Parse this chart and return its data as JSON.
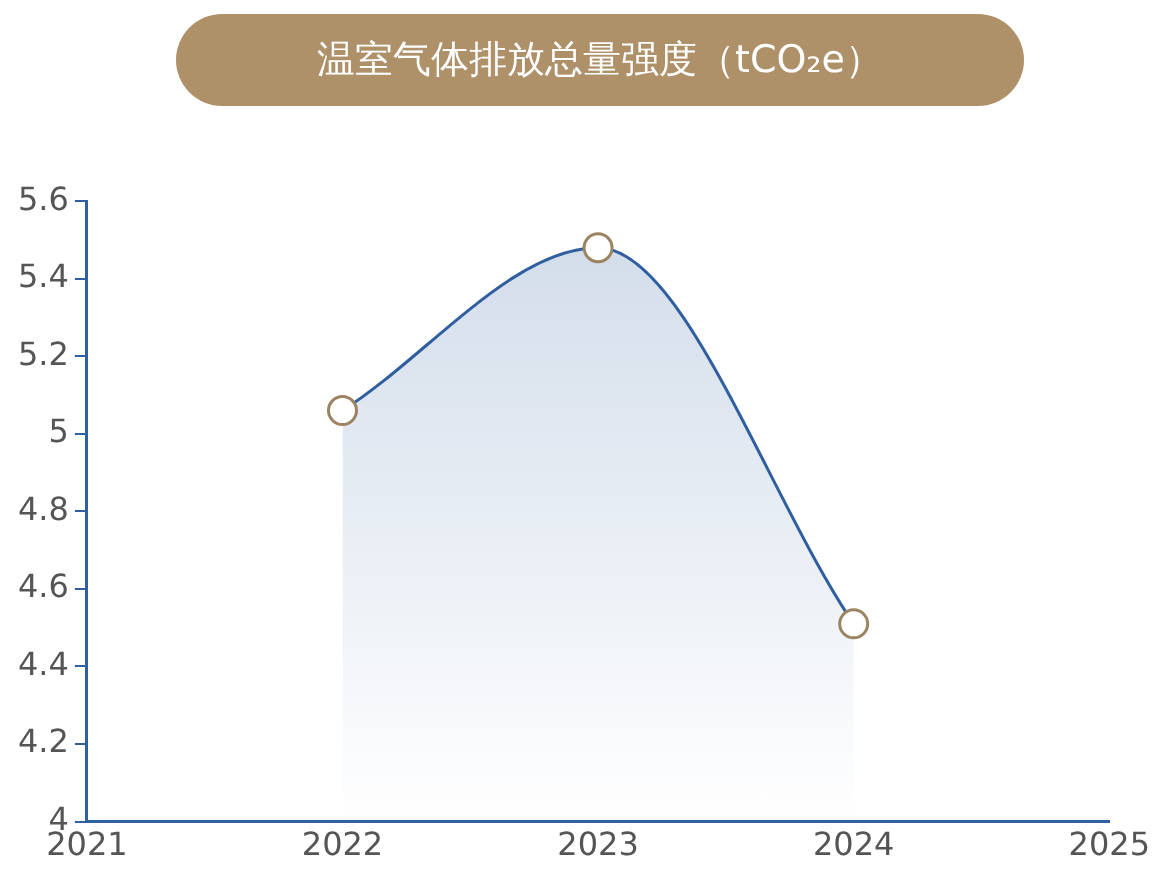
{
  "chart_data": {
    "type": "area",
    "title": "温室气体排放总量强度（tCO₂e）",
    "x": [
      2022,
      2023,
      2024
    ],
    "series": [
      {
        "color": "#2f5f9e",
        "values": [
          5.06,
          5.48,
          4.51
        ]
      }
    ],
    "xlim": [
      2021,
      2025
    ],
    "xticks": [
      2021,
      2022,
      2023,
      2024,
      2025
    ],
    "ylim": [
      4,
      5.6
    ],
    "yticks": [
      4,
      4.2,
      4.4,
      4.6,
      4.8,
      5,
      5.2,
      5.4,
      5.6
    ],
    "grid": false,
    "legend": false,
    "marker": "circle",
    "line_style": "solid"
  }
}
